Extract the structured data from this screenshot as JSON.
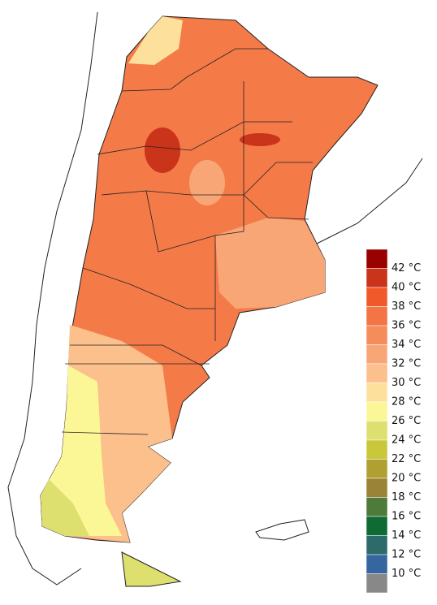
{
  "legend": {
    "colors": [
      "#990000",
      "#c9341a",
      "#f05a2a",
      "#f37444",
      "#f58c5c",
      "#f8a676",
      "#fbc08c",
      "#fde09c",
      "#fbf796",
      "#dde06e",
      "#c8c83a",
      "#b0a032",
      "#9a8336",
      "#4e7a3a",
      "#0e6b34",
      "#2d6b6a",
      "#3566a0",
      "#888888"
    ],
    "labels": [
      "42 °C",
      "40 °C",
      "38 °C",
      "36 °C",
      "34 °C",
      "32 °C",
      "30 °C",
      "28 °C",
      "26 °C",
      "24 °C",
      "22 °C",
      "20 °C",
      "18 °C",
      "16 °C",
      "14 °C",
      "12 °C",
      "10 °C"
    ]
  }
}
